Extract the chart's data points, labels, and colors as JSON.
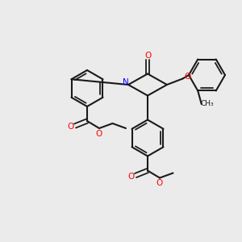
{
  "bg_color": "#ebebeb",
  "bond_color": "#1a1a1a",
  "bond_lw": 1.5,
  "atom_colors": {
    "O": "#ff0000",
    "N": "#0000ff",
    "C": "#1a1a1a"
  },
  "font_size": 7.5,
  "font_size_small": 6.5
}
